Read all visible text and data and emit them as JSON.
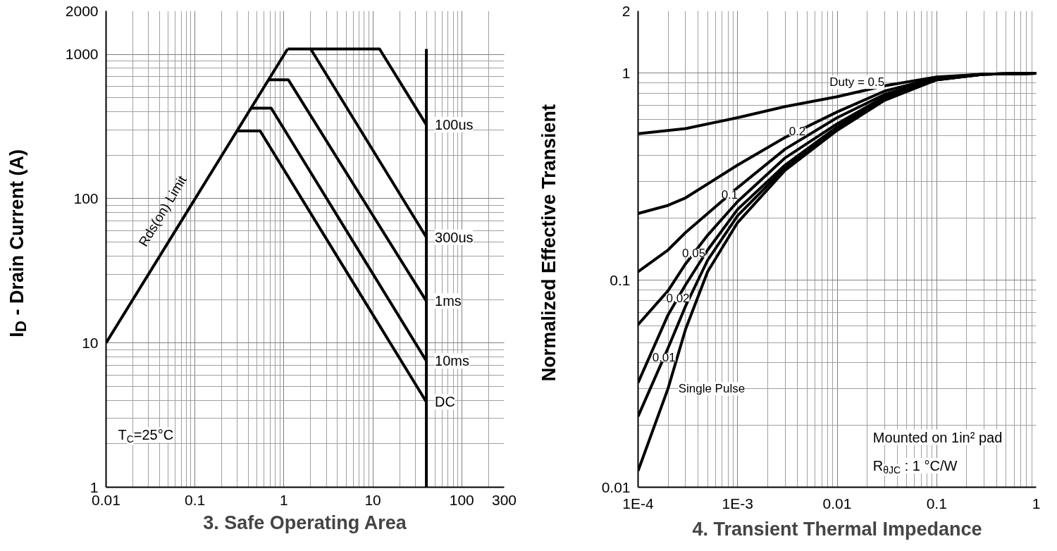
{
  "chart_data": [
    {
      "type": "line",
      "title": "3. Safe Operating Area",
      "ylabel": "I$_{D}$ - Drain Current (A)",
      "log": "xy",
      "grid": true,
      "line_style": "solid",
      "xlim": [
        0.01,
        300
      ],
      "ylim": [
        1,
        2000
      ],
      "xticks": [
        0.01,
        0.1,
        1,
        10,
        100,
        300
      ],
      "yticks": [
        1,
        10,
        100,
        1000,
        2000
      ],
      "annotations": [
        "T$_{C}$=25°C"
      ],
      "series": [
        {
          "name": "Rds(on) Limit",
          "color": "#000000",
          "x": [
            0.01,
            1.1
          ],
          "values": [
            10,
            1090
          ]
        },
        {
          "name": "100us",
          "color": "#000000",
          "x": [
            1.1,
            11.9,
            40
          ],
          "values": [
            1090,
            1090,
            325
          ]
        },
        {
          "name": "300us",
          "color": "#000000",
          "x": [
            2.0,
            40
          ],
          "values": [
            1090,
            54
          ]
        },
        {
          "name": "1ms",
          "color": "#000000",
          "x": [
            0.67,
            1.12,
            40
          ],
          "values": [
            667,
            667,
            19.5
          ]
        },
        {
          "name": "10ms",
          "color": "#000000",
          "x": [
            0.42,
            0.72,
            40
          ],
          "values": [
            424,
            424,
            7.5
          ]
        },
        {
          "name": "DC",
          "color": "#000000",
          "x": [
            0.3,
            0.54,
            40
          ],
          "values": [
            295,
            295,
            3.9
          ]
        },
        {
          "color": "#000000",
          "x": [
            40,
            40
          ],
          "values": [
            1090,
            1
          ]
        }
      ]
    },
    {
      "type": "line",
      "title": "4. Transient Thermal Impedance",
      "ylabel": "Normalized Effective Transient",
      "log": "xy",
      "grid": true,
      "line_style": "solid",
      "xlim": [
        0.0001,
        1
      ],
      "ylim": [
        0.01,
        2
      ],
      "xticks": [
        {
          "value": 0.0001,
          "label": "1E-4"
        },
        {
          "value": 0.001,
          "label": "1E-3"
        },
        0.01,
        0.1,
        1
      ],
      "yticks": [
        0.01,
        0.1,
        1,
        2
      ],
      "annotations": [
        "Mounted on 1in² pad",
        "R$_{θJC}$ : 1 °C/W"
      ],
      "series": [
        {
          "name": "Duty = 0.5",
          "color": "#000000",
          "x": [
            0.0001,
            0.0003,
            0.001,
            0.003,
            0.01,
            0.03,
            0.1,
            0.3,
            1
          ],
          "values": [
            0.51,
            0.54,
            0.61,
            0.69,
            0.77,
            0.87,
            0.96,
            0.99,
            1.0
          ]
        },
        {
          "name": "0.2",
          "color": "#000000",
          "x": [
            0.0001,
            0.0002,
            0.0003,
            0.001,
            0.003,
            0.01,
            0.03,
            0.1,
            0.3,
            1
          ],
          "values": [
            0.21,
            0.23,
            0.25,
            0.36,
            0.49,
            0.65,
            0.82,
            0.95,
            0.99,
            1.0
          ]
        },
        {
          "name": "0.1",
          "color": "#000000",
          "x": [
            0.0001,
            0.0002,
            0.0003,
            0.001,
            0.003,
            0.01,
            0.03,
            0.1,
            0.3,
            1
          ],
          "values": [
            0.11,
            0.14,
            0.17,
            0.28,
            0.43,
            0.61,
            0.79,
            0.94,
            0.99,
            1.0
          ]
        },
        {
          "name": "0.05",
          "color": "#000000",
          "x": [
            0.0001,
            0.0002,
            0.0003,
            0.0005,
            0.001,
            0.003,
            0.01,
            0.03,
            0.1,
            0.3,
            1
          ],
          "values": [
            0.061,
            0.089,
            0.12,
            0.165,
            0.24,
            0.39,
            0.57,
            0.77,
            0.94,
            0.99,
            1.0
          ]
        },
        {
          "name": "0.02",
          "color": "#000000",
          "x": [
            0.0001,
            0.0002,
            0.0003,
            0.0005,
            0.001,
            0.003,
            0.01,
            0.03,
            0.1,
            0.3,
            1
          ],
          "values": [
            0.032,
            0.068,
            0.095,
            0.14,
            0.22,
            0.36,
            0.55,
            0.76,
            0.93,
            0.99,
            1.0
          ]
        },
        {
          "name": "0.01",
          "color": "#000000",
          "x": [
            0.0001,
            0.0002,
            0.0003,
            0.0005,
            0.001,
            0.003,
            0.01,
            0.03,
            0.1,
            0.3,
            1
          ],
          "values": [
            0.022,
            0.047,
            0.075,
            0.125,
            0.205,
            0.35,
            0.54,
            0.75,
            0.93,
            0.99,
            1.0
          ]
        },
        {
          "name": "Single Pulse",
          "color": "#000000",
          "x": [
            0.0001,
            0.0002,
            0.0003,
            0.0005,
            0.001,
            0.003,
            0.01,
            0.03,
            0.1,
            0.3,
            1
          ],
          "values": [
            0.012,
            0.03,
            0.058,
            0.11,
            0.19,
            0.34,
            0.53,
            0.74,
            0.93,
            0.99,
            1.0
          ]
        }
      ]
    }
  ]
}
